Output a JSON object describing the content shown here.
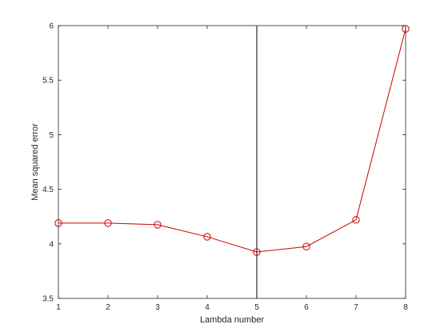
{
  "chart_data": {
    "type": "line",
    "title": "",
    "xlabel": "Lambda number",
    "ylabel": "Mean squared error",
    "xlim": [
      1,
      8
    ],
    "ylim": [
      3.5,
      6
    ],
    "xticks": [
      "1",
      "2",
      "3",
      "4",
      "5",
      "6",
      "7",
      "8"
    ],
    "yticks": [
      "3.5",
      "4",
      "4.5",
      "5",
      "5.5",
      "6"
    ],
    "grid": false,
    "legend": "none",
    "series": [
      {
        "x": [
          1,
          2,
          3,
          4,
          5,
          6,
          7,
          8
        ],
        "values": [
          4.19,
          4.19,
          4.175,
          4.065,
          3.925,
          3.975,
          4.22,
          5.97
        ],
        "color": "#cc0000",
        "marker": "circle"
      }
    ],
    "vertical_line": {
      "x": 5,
      "color": "#000000"
    }
  }
}
